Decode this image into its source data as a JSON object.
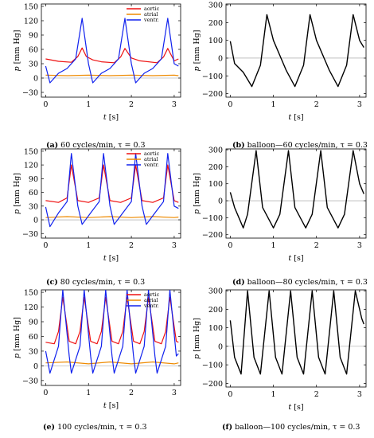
{
  "colors": {
    "aortic": "#ee1111",
    "atrial": "#ee8a00",
    "ventr": "#1122ee",
    "balloon": "#000000",
    "zero_line": "#999999"
  },
  "labels": {
    "t_axis": "t",
    "t_unit": "[s]",
    "p_axis": "p",
    "p_unit": "[mm Hg]"
  },
  "legend": [
    "aortic",
    "atrial",
    "ventr."
  ],
  "captions": [
    {
      "letter": "(a)",
      "text": " 60 cycles/min, τ = 0.3"
    },
    {
      "letter": "(b)",
      "text": " balloon—60 cycles/min, τ = 0.3"
    },
    {
      "letter": "(c)",
      "text": " 80 cycles/min, τ = 0.3"
    },
    {
      "letter": "(d)",
      "text": " balloon—80 cycles/min, τ = 0.3"
    },
    {
      "letter": "(e)",
      "text": " 100 cycles/min, τ = 0.3"
    },
    {
      "letter": "(f)",
      "text": " balloon—100 cycles/min, τ = 0.3"
    }
  ],
  "chart_data": [
    {
      "type": "line",
      "panel": "a",
      "rate_cpm": 60,
      "x_ticks": [
        0,
        1,
        2,
        3
      ],
      "y_ticks": [
        -30,
        0,
        30,
        60,
        90,
        120,
        150
      ],
      "xlim": [
        -0.1,
        3.15
      ],
      "ylim": [
        -40,
        155
      ],
      "legend_position": "top-right",
      "series": [
        {
          "name": "aortic",
          "x": [
            0,
            0.3,
            0.6,
            0.75,
            0.85,
            0.95,
            1.1,
            1.3,
            1.6,
            1.75,
            1.85,
            2.0,
            2.2,
            2.6,
            2.75,
            2.85,
            3.0,
            3.1
          ],
          "y": [
            40,
            35,
            33,
            45,
            63,
            45,
            38,
            34,
            32,
            44,
            62,
            42,
            36,
            32,
            44,
            62,
            36,
            40
          ]
        },
        {
          "name": "atrial",
          "x": [
            0,
            0.5,
            1.0,
            1.5,
            2.0,
            2.5,
            3.0,
            3.1
          ],
          "y": [
            6,
            5,
            6,
            5,
            6,
            5,
            6,
            5
          ]
        },
        {
          "name": "ventr.",
          "x": [
            0,
            0.1,
            0.3,
            0.5,
            0.7,
            0.85,
            1.0,
            1.1,
            1.3,
            1.5,
            1.7,
            1.85,
            2.0,
            2.1,
            2.3,
            2.5,
            2.7,
            2.85,
            3.0,
            3.1
          ],
          "y": [
            25,
            -10,
            10,
            20,
            40,
            125,
            30,
            -10,
            10,
            20,
            40,
            125,
            30,
            -10,
            10,
            20,
            40,
            125,
            30,
            25
          ]
        }
      ]
    },
    {
      "type": "line",
      "panel": "b",
      "rate_cpm": 60,
      "x_ticks": [
        0,
        1,
        2,
        3
      ],
      "y_ticks": [
        -200,
        -100,
        0,
        100,
        200,
        300
      ],
      "xlim": [
        -0.1,
        3.15
      ],
      "ylim": [
        -220,
        305
      ],
      "series": [
        {
          "name": "",
          "x": [
            0,
            0.1,
            0.3,
            0.5,
            0.7,
            0.85,
            1.0,
            1.3,
            1.5,
            1.7,
            1.85,
            2.0,
            2.3,
            2.5,
            2.7,
            2.85,
            3.0,
            3.1
          ],
          "y": [
            95,
            -30,
            -80,
            -160,
            -40,
            245,
            100,
            -70,
            -160,
            -40,
            245,
            100,
            -70,
            -160,
            -40,
            245,
            100,
            60
          ]
        }
      ]
    },
    {
      "type": "line",
      "panel": "c",
      "rate_cpm": 80,
      "x_ticks": [
        0,
        1,
        2,
        3
      ],
      "y_ticks": [
        -30,
        0,
        30,
        60,
        90,
        120,
        150
      ],
      "xlim": [
        -0.1,
        3.15
      ],
      "ylim": [
        -40,
        155
      ],
      "legend_position": "top-right",
      "series": [
        {
          "name": "aortic",
          "x": [
            0,
            0.3,
            0.5,
            0.6,
            0.75,
            1.0,
            1.25,
            1.35,
            1.5,
            1.75,
            2.0,
            2.1,
            2.25,
            2.5,
            2.75,
            2.85,
            3.0,
            3.1
          ],
          "y": [
            42,
            38,
            48,
            120,
            42,
            38,
            48,
            120,
            42,
            38,
            48,
            120,
            42,
            38,
            48,
            120,
            42,
            38
          ]
        },
        {
          "name": "atrial",
          "x": [
            0,
            0.5,
            1.0,
            1.5,
            2.0,
            2.5,
            3.0,
            3.1
          ],
          "y": [
            5,
            7,
            5,
            7,
            5,
            7,
            5,
            6
          ]
        },
        {
          "name": "ventr.",
          "x": [
            0,
            0.1,
            0.3,
            0.5,
            0.6,
            0.75,
            0.85,
            1.05,
            1.25,
            1.35,
            1.5,
            1.6,
            1.8,
            2.0,
            2.1,
            2.25,
            2.35,
            2.55,
            2.75,
            2.85,
            3.0,
            3.1
          ],
          "y": [
            28,
            -15,
            15,
            40,
            145,
            30,
            -10,
            15,
            40,
            145,
            30,
            -10,
            15,
            40,
            145,
            30,
            -10,
            15,
            40,
            145,
            30,
            25
          ]
        }
      ]
    },
    {
      "type": "line",
      "panel": "d",
      "rate_cpm": 80,
      "x_ticks": [
        0,
        1,
        2,
        3
      ],
      "y_ticks": [
        -200,
        -100,
        0,
        100,
        200,
        300
      ],
      "xlim": [
        -0.1,
        3.15
      ],
      "ylim": [
        -220,
        305
      ],
      "series": [
        {
          "name": "",
          "x": [
            0,
            0.1,
            0.3,
            0.4,
            0.6,
            0.75,
            1.0,
            1.15,
            1.35,
            1.5,
            1.75,
            1.9,
            2.1,
            2.25,
            2.5,
            2.65,
            2.85,
            3.0,
            3.1
          ],
          "y": [
            50,
            -40,
            -160,
            -80,
            295,
            -40,
            -160,
            -80,
            295,
            -40,
            -160,
            -80,
            295,
            -40,
            -160,
            -80,
            295,
            100,
            40
          ]
        }
      ]
    },
    {
      "type": "line",
      "panel": "e",
      "rate_cpm": 100,
      "x_ticks": [
        0,
        1,
        2,
        3
      ],
      "y_ticks": [
        -30,
        0,
        30,
        60,
        90,
        120,
        150
      ],
      "xlim": [
        -0.1,
        3.15
      ],
      "ylim": [
        -40,
        155
      ],
      "legend_position": "top-right",
      "series": [
        {
          "name": "aortic",
          "x": [
            0,
            0.2,
            0.3,
            0.4,
            0.55,
            0.7,
            0.8,
            0.9,
            1.05,
            1.2,
            1.3,
            1.4,
            1.55,
            1.7,
            1.8,
            1.9,
            2.05,
            2.2,
            2.3,
            2.4,
            2.55,
            2.7,
            2.8,
            2.9,
            3.05,
            3.1
          ],
          "y": [
            48,
            45,
            70,
            140,
            50,
            45,
            70,
            140,
            50,
            45,
            70,
            140,
            50,
            45,
            70,
            140,
            50,
            45,
            70,
            140,
            50,
            45,
            70,
            140,
            50,
            48
          ]
        },
        {
          "name": "atrial",
          "x": [
            0,
            0.5,
            1.0,
            1.5,
            2.0,
            2.5,
            3.0,
            3.1
          ],
          "y": [
            6,
            8,
            4,
            8,
            4,
            8,
            4,
            6
          ]
        },
        {
          "name": "ventr.",
          "x": [
            0,
            0.1,
            0.3,
            0.4,
            0.55,
            0.6,
            0.8,
            0.9,
            1.05,
            1.1,
            1.3,
            1.4,
            1.55,
            1.6,
            1.8,
            1.9,
            2.05,
            2.1,
            2.3,
            2.4,
            2.55,
            2.6,
            2.8,
            2.9,
            3.05,
            3.1
          ],
          "y": [
            30,
            -15,
            40,
            155,
            20,
            -15,
            40,
            155,
            20,
            -15,
            40,
            155,
            20,
            -15,
            40,
            155,
            20,
            -15,
            40,
            155,
            20,
            -15,
            40,
            155,
            20,
            25
          ]
        }
      ]
    },
    {
      "type": "line",
      "panel": "f",
      "rate_cpm": 100,
      "x_ticks": [
        0,
        1,
        2,
        3
      ],
      "y_ticks": [
        -200,
        -100,
        0,
        100,
        200,
        300
      ],
      "xlim": [
        -0.1,
        3.15
      ],
      "ylim": [
        -220,
        305
      ],
      "series": [
        {
          "name": "",
          "x": [
            0,
            0.1,
            0.25,
            0.4,
            0.55,
            0.7,
            0.9,
            1.05,
            1.2,
            1.4,
            1.55,
            1.7,
            1.9,
            2.05,
            2.2,
            2.4,
            2.55,
            2.7,
            2.9,
            3.05,
            3.1
          ],
          "y": [
            140,
            -60,
            -150,
            300,
            -60,
            -150,
            300,
            -60,
            -150,
            300,
            -60,
            -150,
            300,
            -60,
            -150,
            300,
            -60,
            -150,
            300,
            150,
            120
          ]
        }
      ]
    }
  ]
}
